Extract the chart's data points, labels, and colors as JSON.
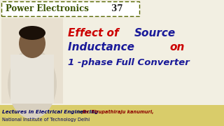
{
  "bg_color": "#f2efe2",
  "title_box_text": "Power Electronics",
  "title_box_number": " 37",
  "title_box_bg": "#ffffff",
  "title_box_border": "#556600",
  "title_text_color": "#3a5200",
  "number_color": "#222222",
  "line1_red": "Effect of ",
  "line1_blue": "Source",
  "line2_blue": "Inductance ",
  "line2_red": "on",
  "line3": "1 -phase Full Converter",
  "red_color": "#cc0000",
  "blue_color": "#1a1a99",
  "bottom_text1": "Lectures in Electrical Engineering",
  "bottom_by": " by ",
  "bottom_name": "Dr. Tirupathiraju kanumuri,",
  "bottom_text2": "National Institute of Technology Delhi",
  "bottom_bg": "#d9cc6a",
  "bottom_text_color": "#000066",
  "bottom_name_color": "#8b0000",
  "photo_color": "#9a9080"
}
